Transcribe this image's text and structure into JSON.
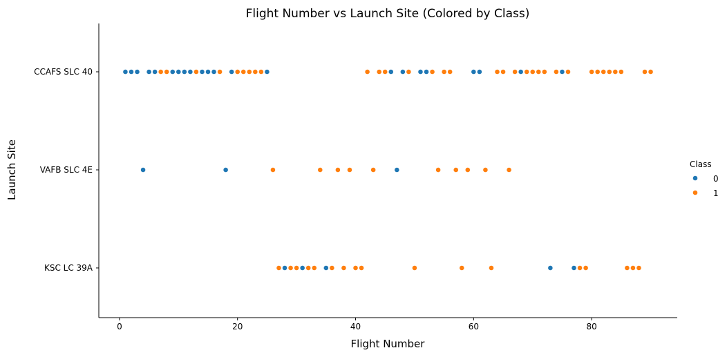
{
  "chart_data": {
    "type": "scatter",
    "title": "Flight Number vs Launch Site (Colored by Class)",
    "xlabel": "Flight Number",
    "ylabel": "Launch Site",
    "xlim": [
      -3.5,
      94.5
    ],
    "xticks": [
      0,
      20,
      40,
      60,
      80
    ],
    "categories": [
      "CCAFS SLC 40",
      "VAFB SLC 4E",
      "KSC LC 39A"
    ],
    "grid": false,
    "legend": {
      "title": "Class",
      "placement": "right",
      "entries": [
        {
          "label": "0",
          "color": "#1f77b4"
        },
        {
          "label": "1",
          "color": "#ff7f0e"
        }
      ]
    },
    "series": [
      {
        "name": "0",
        "color": "#1f77b4",
        "points": [
          {
            "x": 1,
            "y": "CCAFS SLC 40"
          },
          {
            "x": 2,
            "y": "CCAFS SLC 40"
          },
          {
            "x": 3,
            "y": "CCAFS SLC 40"
          },
          {
            "x": 5,
            "y": "CCAFS SLC 40"
          },
          {
            "x": 6,
            "y": "CCAFS SLC 40"
          },
          {
            "x": 9,
            "y": "CCAFS SLC 40"
          },
          {
            "x": 10,
            "y": "CCAFS SLC 40"
          },
          {
            "x": 11,
            "y": "CCAFS SLC 40"
          },
          {
            "x": 12,
            "y": "CCAFS SLC 40"
          },
          {
            "x": 14,
            "y": "CCAFS SLC 40"
          },
          {
            "x": 15,
            "y": "CCAFS SLC 40"
          },
          {
            "x": 16,
            "y": "CCAFS SLC 40"
          },
          {
            "x": 19,
            "y": "CCAFS SLC 40"
          },
          {
            "x": 25,
            "y": "CCAFS SLC 40"
          },
          {
            "x": 46,
            "y": "CCAFS SLC 40"
          },
          {
            "x": 48,
            "y": "CCAFS SLC 40"
          },
          {
            "x": 51,
            "y": "CCAFS SLC 40"
          },
          {
            "x": 52,
            "y": "CCAFS SLC 40"
          },
          {
            "x": 60,
            "y": "CCAFS SLC 40"
          },
          {
            "x": 61,
            "y": "CCAFS SLC 40"
          },
          {
            "x": 68,
            "y": "CCAFS SLC 40"
          },
          {
            "x": 75,
            "y": "CCAFS SLC 40"
          },
          {
            "x": 4,
            "y": "VAFB SLC 4E"
          },
          {
            "x": 18,
            "y": "VAFB SLC 4E"
          },
          {
            "x": 47,
            "y": "VAFB SLC 4E"
          },
          {
            "x": 28,
            "y": "KSC LC 39A"
          },
          {
            "x": 31,
            "y": "KSC LC 39A"
          },
          {
            "x": 35,
            "y": "KSC LC 39A"
          },
          {
            "x": 73,
            "y": "KSC LC 39A"
          },
          {
            "x": 77,
            "y": "KSC LC 39A"
          }
        ]
      },
      {
        "name": "1",
        "color": "#ff7f0e",
        "points": [
          {
            "x": 7,
            "y": "CCAFS SLC 40"
          },
          {
            "x": 8,
            "y": "CCAFS SLC 40"
          },
          {
            "x": 13,
            "y": "CCAFS SLC 40"
          },
          {
            "x": 17,
            "y": "CCAFS SLC 40"
          },
          {
            "x": 20,
            "y": "CCAFS SLC 40"
          },
          {
            "x": 21,
            "y": "CCAFS SLC 40"
          },
          {
            "x": 22,
            "y": "CCAFS SLC 40"
          },
          {
            "x": 23,
            "y": "CCAFS SLC 40"
          },
          {
            "x": 24,
            "y": "CCAFS SLC 40"
          },
          {
            "x": 42,
            "y": "CCAFS SLC 40"
          },
          {
            "x": 44,
            "y": "CCAFS SLC 40"
          },
          {
            "x": 45,
            "y": "CCAFS SLC 40"
          },
          {
            "x": 49,
            "y": "CCAFS SLC 40"
          },
          {
            "x": 53,
            "y": "CCAFS SLC 40"
          },
          {
            "x": 55,
            "y": "CCAFS SLC 40"
          },
          {
            "x": 56,
            "y": "CCAFS SLC 40"
          },
          {
            "x": 64,
            "y": "CCAFS SLC 40"
          },
          {
            "x": 65,
            "y": "CCAFS SLC 40"
          },
          {
            "x": 67,
            "y": "CCAFS SLC 40"
          },
          {
            "x": 69,
            "y": "CCAFS SLC 40"
          },
          {
            "x": 70,
            "y": "CCAFS SLC 40"
          },
          {
            "x": 71,
            "y": "CCAFS SLC 40"
          },
          {
            "x": 72,
            "y": "CCAFS SLC 40"
          },
          {
            "x": 74,
            "y": "CCAFS SLC 40"
          },
          {
            "x": 76,
            "y": "CCAFS SLC 40"
          },
          {
            "x": 80,
            "y": "CCAFS SLC 40"
          },
          {
            "x": 81,
            "y": "CCAFS SLC 40"
          },
          {
            "x": 82,
            "y": "CCAFS SLC 40"
          },
          {
            "x": 83,
            "y": "CCAFS SLC 40"
          },
          {
            "x": 84,
            "y": "CCAFS SLC 40"
          },
          {
            "x": 85,
            "y": "CCAFS SLC 40"
          },
          {
            "x": 89,
            "y": "CCAFS SLC 40"
          },
          {
            "x": 90,
            "y": "CCAFS SLC 40"
          },
          {
            "x": 26,
            "y": "VAFB SLC 4E"
          },
          {
            "x": 34,
            "y": "VAFB SLC 4E"
          },
          {
            "x": 37,
            "y": "VAFB SLC 4E"
          },
          {
            "x": 39,
            "y": "VAFB SLC 4E"
          },
          {
            "x": 43,
            "y": "VAFB SLC 4E"
          },
          {
            "x": 54,
            "y": "VAFB SLC 4E"
          },
          {
            "x": 57,
            "y": "VAFB SLC 4E"
          },
          {
            "x": 59,
            "y": "VAFB SLC 4E"
          },
          {
            "x": 62,
            "y": "VAFB SLC 4E"
          },
          {
            "x": 66,
            "y": "VAFB SLC 4E"
          },
          {
            "x": 27,
            "y": "KSC LC 39A"
          },
          {
            "x": 29,
            "y": "KSC LC 39A"
          },
          {
            "x": 30,
            "y": "KSC LC 39A"
          },
          {
            "x": 32,
            "y": "KSC LC 39A"
          },
          {
            "x": 33,
            "y": "KSC LC 39A"
          },
          {
            "x": 36,
            "y": "KSC LC 39A"
          },
          {
            "x": 38,
            "y": "KSC LC 39A"
          },
          {
            "x": 40,
            "y": "KSC LC 39A"
          },
          {
            "x": 41,
            "y": "KSC LC 39A"
          },
          {
            "x": 50,
            "y": "KSC LC 39A"
          },
          {
            "x": 58,
            "y": "KSC LC 39A"
          },
          {
            "x": 63,
            "y": "KSC LC 39A"
          },
          {
            "x": 78,
            "y": "KSC LC 39A"
          },
          {
            "x": 79,
            "y": "KSC LC 39A"
          },
          {
            "x": 86,
            "y": "KSC LC 39A"
          },
          {
            "x": 87,
            "y": "KSC LC 39A"
          },
          {
            "x": 88,
            "y": "KSC LC 39A"
          }
        ]
      }
    ]
  }
}
